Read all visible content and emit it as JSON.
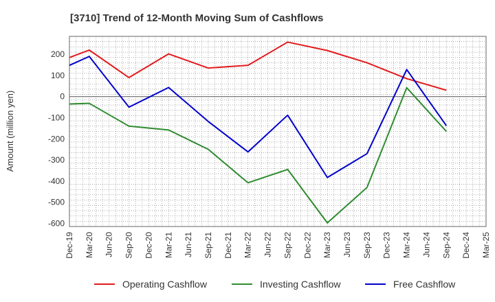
{
  "chart_data": {
    "type": "line",
    "title": "[3710]  Trend of 12-Month Moving Sum of Cashflows",
    "xlabel": "",
    "ylabel": "Amount (million yen)",
    "categories": [
      "Dec-19",
      "Mar-20",
      "Jun-20",
      "Sep-20",
      "Dec-20",
      "Mar-21",
      "Jun-21",
      "Sep-21",
      "Dec-21",
      "Mar-22",
      "Jun-22",
      "Sep-22",
      "Dec-22",
      "Mar-23",
      "Jun-23",
      "Sep-23",
      "Dec-23",
      "Mar-24",
      "Jun-24",
      "Sep-24",
      "Dec-24",
      "Mar-25"
    ],
    "ylim": [
      -615,
      285
    ],
    "yticks": [
      200,
      100,
      0,
      -100,
      -200,
      -300,
      -400,
      -500,
      -600
    ],
    "grid": true,
    "legend_position": "bottom",
    "series": [
      {
        "name": "Operating Cashflow",
        "color": "#e31a1c",
        "points": [
          [
            "Dec-19",
            185
          ],
          [
            "Mar-20",
            220
          ],
          [
            "Sep-20",
            90
          ],
          [
            "Mar-21",
            202
          ],
          [
            "Sep-21",
            135
          ],
          [
            "Mar-22",
            148
          ],
          [
            "Sep-22",
            258
          ],
          [
            "Mar-23",
            218
          ],
          [
            "Sep-23",
            160
          ],
          [
            "Mar-24",
            85
          ],
          [
            "Sep-24",
            30
          ]
        ]
      },
      {
        "name": "Investing Cashflow",
        "color": "#2e8b2e",
        "points": [
          [
            "Dec-19",
            -35
          ],
          [
            "Mar-20",
            -32
          ],
          [
            "Sep-20",
            -140
          ],
          [
            "Mar-21",
            -158
          ],
          [
            "Sep-21",
            -250
          ],
          [
            "Mar-22",
            -408
          ],
          [
            "Sep-22",
            -345
          ],
          [
            "Mar-23",
            -598
          ],
          [
            "Sep-23",
            -430
          ],
          [
            "Mar-24",
            42
          ],
          [
            "Sep-24",
            -165
          ]
        ]
      },
      {
        "name": "Free Cashflow",
        "color": "#0000cc",
        "points": [
          [
            "Dec-19",
            148
          ],
          [
            "Mar-20",
            190
          ],
          [
            "Sep-20",
            -50
          ],
          [
            "Mar-21",
            43
          ],
          [
            "Sep-21",
            -118
          ],
          [
            "Mar-22",
            -262
          ],
          [
            "Sep-22",
            -88
          ],
          [
            "Mar-23",
            -383
          ],
          [
            "Sep-23",
            -270
          ],
          [
            "Mar-24",
            128
          ],
          [
            "Sep-24",
            -138
          ]
        ]
      }
    ]
  }
}
